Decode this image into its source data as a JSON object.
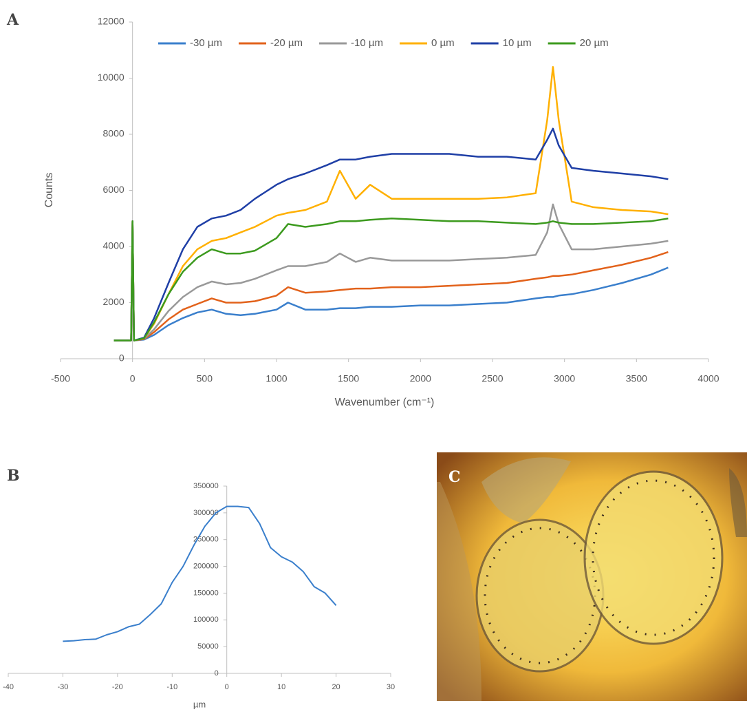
{
  "chart_data": [
    {
      "type": "line",
      "panel": "A",
      "x_label": "Wavenumber (cm⁻¹)",
      "y_label": "Counts",
      "xlim": [
        -500,
        4000
      ],
      "xticks": [
        -500,
        0,
        500,
        1000,
        1500,
        2000,
        2500,
        3000,
        3500,
        4000
      ],
      "ylim": [
        0,
        12000
      ],
      "yticks": [
        0,
        2000,
        4000,
        6000,
        8000,
        10000,
        12000
      ],
      "legend": "top",
      "x": [
        -130,
        -10,
        0,
        10,
        80,
        150,
        250,
        350,
        450,
        550,
        650,
        750,
        850,
        1000,
        1080,
        1200,
        1350,
        1440,
        1550,
        1650,
        1800,
        2000,
        2200,
        2400,
        2600,
        2800,
        2880,
        2920,
        2960,
        3050,
        3200,
        3400,
        3600,
        3720
      ],
      "series": [
        {
          "name": "-30 µm",
          "color": "#3a7fcc",
          "values": [
            650,
            650,
            4900,
            650,
            680,
            850,
            1200,
            1450,
            1650,
            1750,
            1600,
            1550,
            1600,
            1750,
            2000,
            1750,
            1750,
            1800,
            1800,
            1850,
            1850,
            1900,
            1900,
            1950,
            2000,
            2150,
            2200,
            2200,
            2250,
            2300,
            2450,
            2700,
            3000,
            3250
          ]
        },
        {
          "name": "-20 µm",
          "color": "#e2621b",
          "values": [
            650,
            650,
            4900,
            650,
            700,
            950,
            1400,
            1750,
            1950,
            2150,
            2000,
            2000,
            2050,
            2250,
            2550,
            2350,
            2400,
            2450,
            2500,
            2500,
            2550,
            2550,
            2600,
            2650,
            2700,
            2850,
            2900,
            2950,
            2950,
            3000,
            3150,
            3350,
            3600,
            3800
          ]
        },
        {
          "name": "-10 µm",
          "color": "#999999",
          "values": [
            650,
            650,
            4900,
            650,
            720,
            1050,
            1700,
            2200,
            2550,
            2750,
            2650,
            2700,
            2850,
            3150,
            3300,
            3300,
            3450,
            3750,
            3450,
            3600,
            3500,
            3500,
            3500,
            3550,
            3600,
            3700,
            4500,
            5500,
            4800,
            3900,
            3900,
            4000,
            4100,
            4200
          ]
        },
        {
          "name": "0 µm",
          "color": "#ffb000",
          "values": [
            650,
            650,
            4900,
            650,
            730,
            1250,
            2300,
            3300,
            3900,
            4200,
            4300,
            4500,
            4700,
            5100,
            5200,
            5300,
            5600,
            6700,
            5700,
            6200,
            5700,
            5700,
            5700,
            5700,
            5750,
            5900,
            8500,
            10400,
            8500,
            5600,
            5400,
            5300,
            5250,
            5150
          ]
        },
        {
          "name": "10 µm",
          "color": "#1f3fa6",
          "values": [
            650,
            650,
            4900,
            650,
            750,
            1450,
            2700,
            3900,
            4700,
            5000,
            5100,
            5300,
            5700,
            6200,
            6400,
            6600,
            6900,
            7100,
            7100,
            7200,
            7300,
            7300,
            7300,
            7200,
            7200,
            7100,
            7800,
            8200,
            7600,
            6800,
            6700,
            6600,
            6500,
            6400
          ]
        },
        {
          "name": "20 µm",
          "color": "#3c9a1e",
          "values": [
            650,
            650,
            4900,
            650,
            730,
            1300,
            2300,
            3100,
            3600,
            3900,
            3750,
            3750,
            3850,
            4300,
            4800,
            4700,
            4800,
            4900,
            4900,
            4950,
            5000,
            4950,
            4900,
            4900,
            4850,
            4800,
            4850,
            4900,
            4850,
            4800,
            4800,
            4850,
            4900,
            5000
          ]
        }
      ]
    },
    {
      "type": "line",
      "panel": "B",
      "x_label": "µm",
      "xlim": [
        -40,
        30
      ],
      "xticks": [
        -40,
        -30,
        -20,
        -10,
        0,
        10,
        20,
        30
      ],
      "ylim": [
        0,
        350000
      ],
      "yticks": [
        0,
        50000,
        100000,
        150000,
        200000,
        250000,
        300000,
        350000
      ],
      "x": [
        -30,
        -28,
        -26,
        -24,
        -22,
        -20,
        -18,
        -16,
        -14,
        -12,
        -10,
        -8,
        -6,
        -4,
        -2,
        0,
        2,
        4,
        6,
        8,
        10,
        12,
        14,
        16,
        18,
        20
      ],
      "series": [
        {
          "color": "#3a7fcc",
          "values": [
            60000,
            61000,
            63000,
            64000,
            72000,
            78000,
            87000,
            92000,
            110000,
            130000,
            170000,
            200000,
            240000,
            275000,
            300000,
            312000,
            312000,
            310000,
            280000,
            235000,
            218000,
            208000,
            190000,
            162000,
            150000,
            127000
          ]
        }
      ]
    }
  ],
  "image": {
    "panel": "C"
  }
}
